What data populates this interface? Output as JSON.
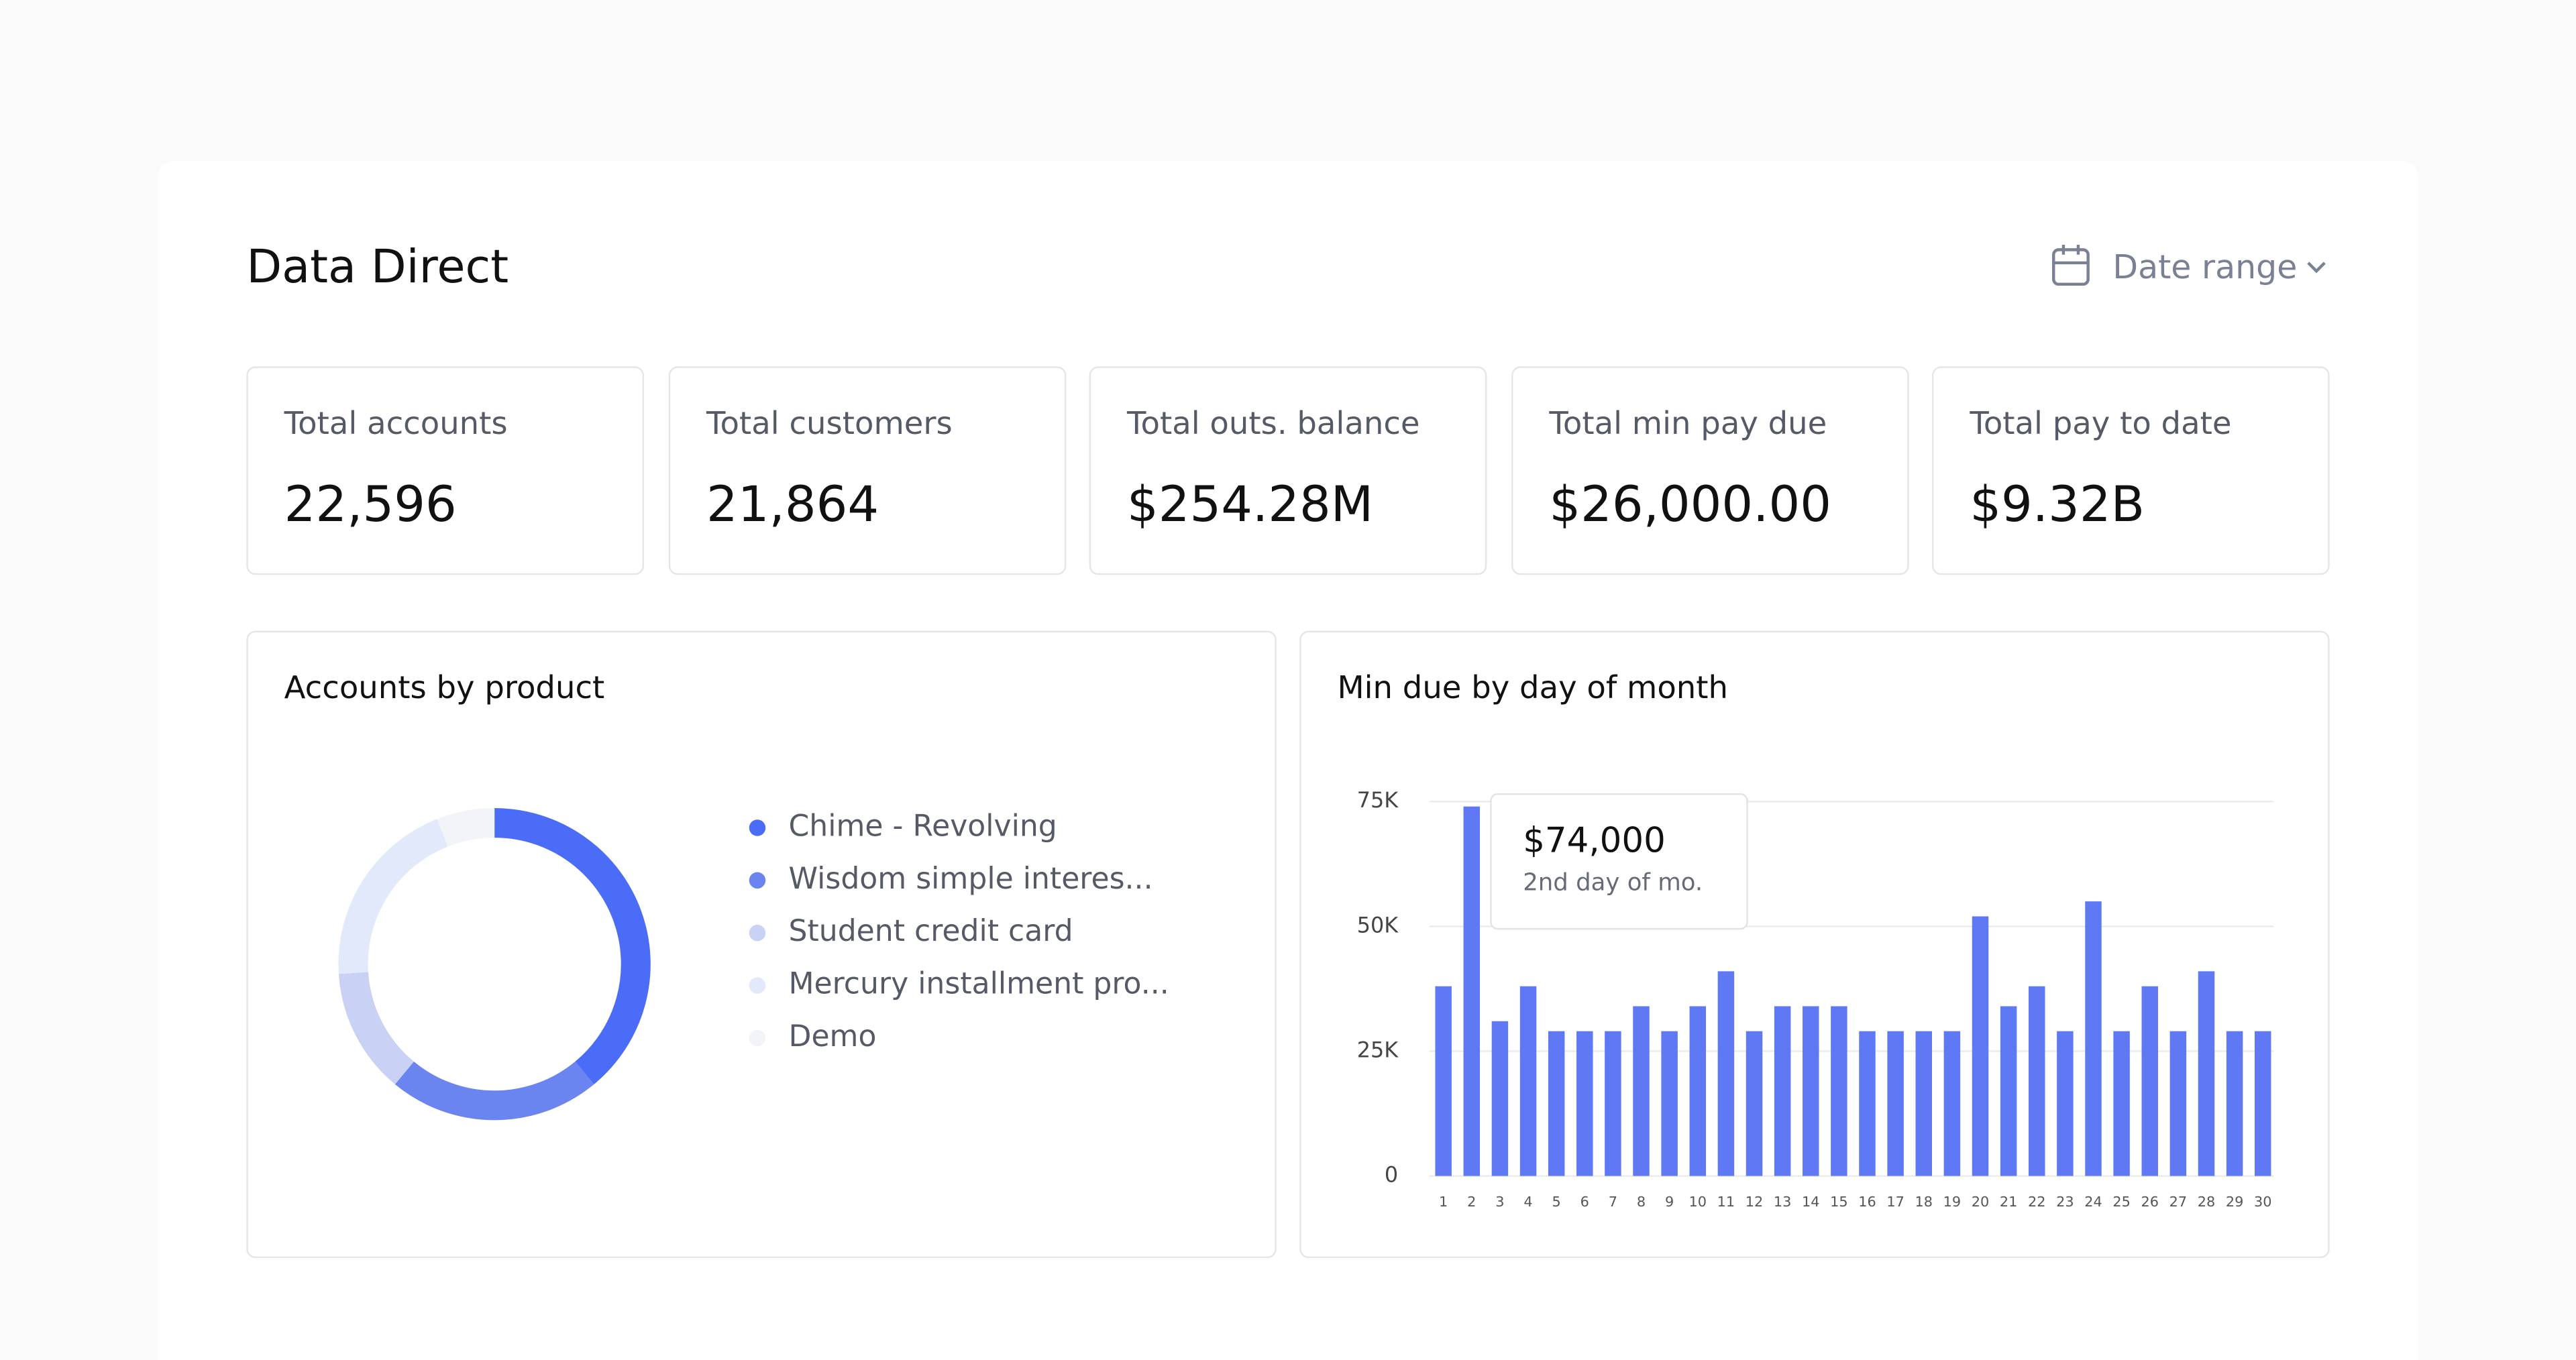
{
  "header": {
    "title": "Data Direct",
    "date_button": "Date range"
  },
  "kpis": [
    {
      "label": "Total accounts",
      "value": "22,596"
    },
    {
      "label": "Total customers",
      "value": "21,864"
    },
    {
      "label": "Total outs. balance",
      "value": "$254.28M"
    },
    {
      "label": "Total min pay due",
      "value": "$26,000.00"
    },
    {
      "label": "Total pay to date",
      "value": "$9.32B"
    }
  ],
  "chart_data": [
    {
      "type": "donut",
      "title": "Accounts by product",
      "categories": [
        "Chime - Revolving",
        "Wisdom simple interes...",
        "Student credit card",
        "Mercury installment pro...",
        "Demo"
      ],
      "values": [
        39,
        22,
        13,
        20,
        6
      ],
      "colors": [
        "#4a6cf7",
        "#6b85f0",
        "#c9d1f5",
        "#e2e9fb",
        "#f2f4f8"
      ]
    },
    {
      "type": "bar",
      "title": "Min due by day of month",
      "categories": [
        "1",
        "2",
        "3",
        "4",
        "5",
        "6",
        "7",
        "8",
        "9",
        "10",
        "11",
        "12",
        "13",
        "14",
        "15",
        "16",
        "17",
        "18",
        "19",
        "20",
        "21",
        "22",
        "23",
        "24",
        "25",
        "26",
        "27",
        "28",
        "29",
        "30"
      ],
      "values": [
        38000,
        74000,
        31000,
        38000,
        29000,
        29000,
        29000,
        34000,
        29000,
        34000,
        41000,
        29000,
        34000,
        34000,
        34000,
        29000,
        29000,
        29000,
        29000,
        52000,
        34000,
        38000,
        29000,
        55000,
        29000,
        38000,
        29000,
        41000,
        29000,
        29000
      ],
      "color": "#5f79f4",
      "ylim": [
        0,
        75000
      ],
      "yticks": [
        {
          "value": 0,
          "label": "0"
        },
        {
          "value": 25000,
          "label": "25K"
        },
        {
          "value": 50000,
          "label": "50K"
        },
        {
          "value": 75000,
          "label": "75K"
        }
      ],
      "grid": true,
      "tooltip": {
        "title": "$74,000",
        "subtitle": "2nd day of mo."
      }
    }
  ]
}
